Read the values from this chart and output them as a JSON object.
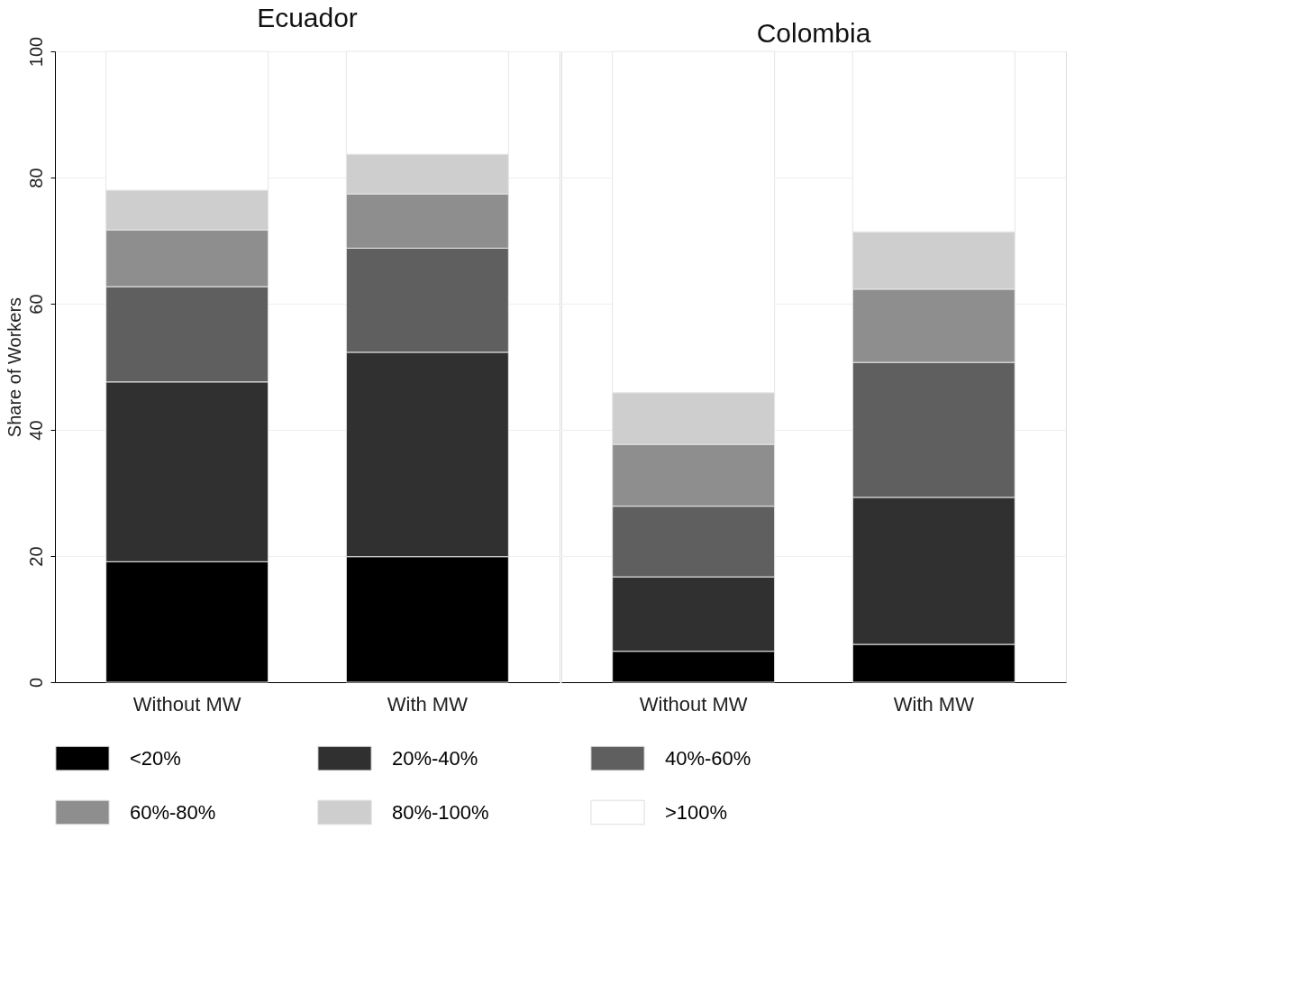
{
  "chart_data": [
    {
      "type": "bar",
      "title": "Ecuador",
      "ylabel": "Share of Workers",
      "categories": [
        "Without MW",
        "With MW"
      ],
      "stacked": true,
      "ylim": [
        0,
        100
      ],
      "yticks": [
        0,
        20,
        40,
        60,
        80,
        100
      ],
      "grid": "y",
      "legend": "bottom",
      "series": [
        {
          "name": "<20%",
          "color": "#000000",
          "values": [
            19.1,
            19.9
          ]
        },
        {
          "name": "20%-40%",
          "color": "#303030",
          "values": [
            28.5,
            32.4
          ]
        },
        {
          "name": "40%-60%",
          "color": "#5f5f5f",
          "values": [
            15.1,
            16.5
          ]
        },
        {
          "name": "60%-80%",
          "color": "#8e8e8e",
          "values": [
            9.0,
            8.6
          ]
        },
        {
          "name": "80%-100%",
          "color": "#cecece",
          "values": [
            6.3,
            6.3
          ]
        },
        {
          "name": ">100%",
          "color": "#ffffff",
          "values": [
            22.0,
            16.3
          ]
        }
      ]
    },
    {
      "type": "bar",
      "title": "Colombia",
      "categories": [
        "Without MW",
        "With MW"
      ],
      "stacked": true,
      "ylim": [
        0,
        100
      ],
      "yticks": [
        0,
        20,
        40,
        60,
        80,
        100
      ],
      "grid": "y",
      "legend": "bottom",
      "tick_labels": "x",
      "series": [
        {
          "name": "<20%",
          "color": "#000000",
          "values": [
            4.9,
            6.0
          ]
        },
        {
          "name": "20%-40%",
          "color": "#303030",
          "values": [
            11.8,
            23.3
          ]
        },
        {
          "name": "40%-60%",
          "color": "#5f5f5f",
          "values": [
            11.2,
            21.4
          ]
        },
        {
          "name": "60%-80%",
          "color": "#8e8e8e",
          "values": [
            9.8,
            11.6
          ]
        },
        {
          "name": "80%-100%",
          "color": "#cecece",
          "values": [
            8.2,
            9.1
          ]
        },
        {
          "name": ">100%",
          "color": "#ffffff",
          "values": [
            54.1,
            28.6
          ]
        }
      ]
    }
  ]
}
